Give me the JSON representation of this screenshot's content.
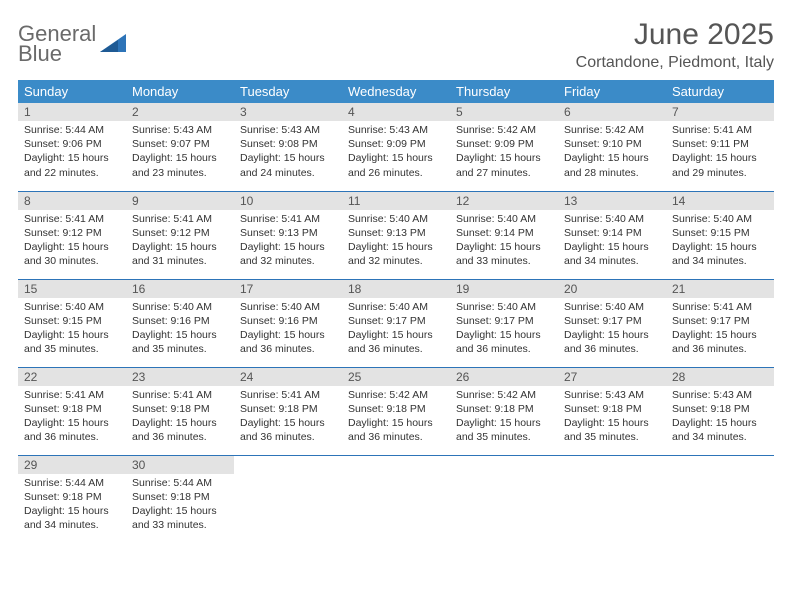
{
  "brand": {
    "line1": "General",
    "line2": "Blue"
  },
  "title": "June 2025",
  "location": "Cortandone, Piedmont, Italy",
  "colors": {
    "header_bg": "#3b8bc8",
    "header_text": "#ffffff",
    "daynum_bg": "#e3e3e3",
    "row_border": "#2d74b8",
    "brand_gray": "#6a6a6a",
    "brand_blue": "#2d74b8",
    "text": "#333333",
    "background": "#ffffff"
  },
  "weekdays": [
    "Sunday",
    "Monday",
    "Tuesday",
    "Wednesday",
    "Thursday",
    "Friday",
    "Saturday"
  ],
  "weeks": [
    [
      {
        "n": "1",
        "sr": "Sunrise: 5:44 AM",
        "ss": "Sunset: 9:06 PM",
        "d1": "Daylight: 15 hours",
        "d2": "and 22 minutes."
      },
      {
        "n": "2",
        "sr": "Sunrise: 5:43 AM",
        "ss": "Sunset: 9:07 PM",
        "d1": "Daylight: 15 hours",
        "d2": "and 23 minutes."
      },
      {
        "n": "3",
        "sr": "Sunrise: 5:43 AM",
        "ss": "Sunset: 9:08 PM",
        "d1": "Daylight: 15 hours",
        "d2": "and 24 minutes."
      },
      {
        "n": "4",
        "sr": "Sunrise: 5:43 AM",
        "ss": "Sunset: 9:09 PM",
        "d1": "Daylight: 15 hours",
        "d2": "and 26 minutes."
      },
      {
        "n": "5",
        "sr": "Sunrise: 5:42 AM",
        "ss": "Sunset: 9:09 PM",
        "d1": "Daylight: 15 hours",
        "d2": "and 27 minutes."
      },
      {
        "n": "6",
        "sr": "Sunrise: 5:42 AM",
        "ss": "Sunset: 9:10 PM",
        "d1": "Daylight: 15 hours",
        "d2": "and 28 minutes."
      },
      {
        "n": "7",
        "sr": "Sunrise: 5:41 AM",
        "ss": "Sunset: 9:11 PM",
        "d1": "Daylight: 15 hours",
        "d2": "and 29 minutes."
      }
    ],
    [
      {
        "n": "8",
        "sr": "Sunrise: 5:41 AM",
        "ss": "Sunset: 9:12 PM",
        "d1": "Daylight: 15 hours",
        "d2": "and 30 minutes."
      },
      {
        "n": "9",
        "sr": "Sunrise: 5:41 AM",
        "ss": "Sunset: 9:12 PM",
        "d1": "Daylight: 15 hours",
        "d2": "and 31 minutes."
      },
      {
        "n": "10",
        "sr": "Sunrise: 5:41 AM",
        "ss": "Sunset: 9:13 PM",
        "d1": "Daylight: 15 hours",
        "d2": "and 32 minutes."
      },
      {
        "n": "11",
        "sr": "Sunrise: 5:40 AM",
        "ss": "Sunset: 9:13 PM",
        "d1": "Daylight: 15 hours",
        "d2": "and 32 minutes."
      },
      {
        "n": "12",
        "sr": "Sunrise: 5:40 AM",
        "ss": "Sunset: 9:14 PM",
        "d1": "Daylight: 15 hours",
        "d2": "and 33 minutes."
      },
      {
        "n": "13",
        "sr": "Sunrise: 5:40 AM",
        "ss": "Sunset: 9:14 PM",
        "d1": "Daylight: 15 hours",
        "d2": "and 34 minutes."
      },
      {
        "n": "14",
        "sr": "Sunrise: 5:40 AM",
        "ss": "Sunset: 9:15 PM",
        "d1": "Daylight: 15 hours",
        "d2": "and 34 minutes."
      }
    ],
    [
      {
        "n": "15",
        "sr": "Sunrise: 5:40 AM",
        "ss": "Sunset: 9:15 PM",
        "d1": "Daylight: 15 hours",
        "d2": "and 35 minutes."
      },
      {
        "n": "16",
        "sr": "Sunrise: 5:40 AM",
        "ss": "Sunset: 9:16 PM",
        "d1": "Daylight: 15 hours",
        "d2": "and 35 minutes."
      },
      {
        "n": "17",
        "sr": "Sunrise: 5:40 AM",
        "ss": "Sunset: 9:16 PM",
        "d1": "Daylight: 15 hours",
        "d2": "and 36 minutes."
      },
      {
        "n": "18",
        "sr": "Sunrise: 5:40 AM",
        "ss": "Sunset: 9:17 PM",
        "d1": "Daylight: 15 hours",
        "d2": "and 36 minutes."
      },
      {
        "n": "19",
        "sr": "Sunrise: 5:40 AM",
        "ss": "Sunset: 9:17 PM",
        "d1": "Daylight: 15 hours",
        "d2": "and 36 minutes."
      },
      {
        "n": "20",
        "sr": "Sunrise: 5:40 AM",
        "ss": "Sunset: 9:17 PM",
        "d1": "Daylight: 15 hours",
        "d2": "and 36 minutes."
      },
      {
        "n": "21",
        "sr": "Sunrise: 5:41 AM",
        "ss": "Sunset: 9:17 PM",
        "d1": "Daylight: 15 hours",
        "d2": "and 36 minutes."
      }
    ],
    [
      {
        "n": "22",
        "sr": "Sunrise: 5:41 AM",
        "ss": "Sunset: 9:18 PM",
        "d1": "Daylight: 15 hours",
        "d2": "and 36 minutes."
      },
      {
        "n": "23",
        "sr": "Sunrise: 5:41 AM",
        "ss": "Sunset: 9:18 PM",
        "d1": "Daylight: 15 hours",
        "d2": "and 36 minutes."
      },
      {
        "n": "24",
        "sr": "Sunrise: 5:41 AM",
        "ss": "Sunset: 9:18 PM",
        "d1": "Daylight: 15 hours",
        "d2": "and 36 minutes."
      },
      {
        "n": "25",
        "sr": "Sunrise: 5:42 AM",
        "ss": "Sunset: 9:18 PM",
        "d1": "Daylight: 15 hours",
        "d2": "and 36 minutes."
      },
      {
        "n": "26",
        "sr": "Sunrise: 5:42 AM",
        "ss": "Sunset: 9:18 PM",
        "d1": "Daylight: 15 hours",
        "d2": "and 35 minutes."
      },
      {
        "n": "27",
        "sr": "Sunrise: 5:43 AM",
        "ss": "Sunset: 9:18 PM",
        "d1": "Daylight: 15 hours",
        "d2": "and 35 minutes."
      },
      {
        "n": "28",
        "sr": "Sunrise: 5:43 AM",
        "ss": "Sunset: 9:18 PM",
        "d1": "Daylight: 15 hours",
        "d2": "and 34 minutes."
      }
    ],
    [
      {
        "n": "29",
        "sr": "Sunrise: 5:44 AM",
        "ss": "Sunset: 9:18 PM",
        "d1": "Daylight: 15 hours",
        "d2": "and 34 minutes."
      },
      {
        "n": "30",
        "sr": "Sunrise: 5:44 AM",
        "ss": "Sunset: 9:18 PM",
        "d1": "Daylight: 15 hours",
        "d2": "and 33 minutes."
      },
      null,
      null,
      null,
      null,
      null
    ]
  ]
}
